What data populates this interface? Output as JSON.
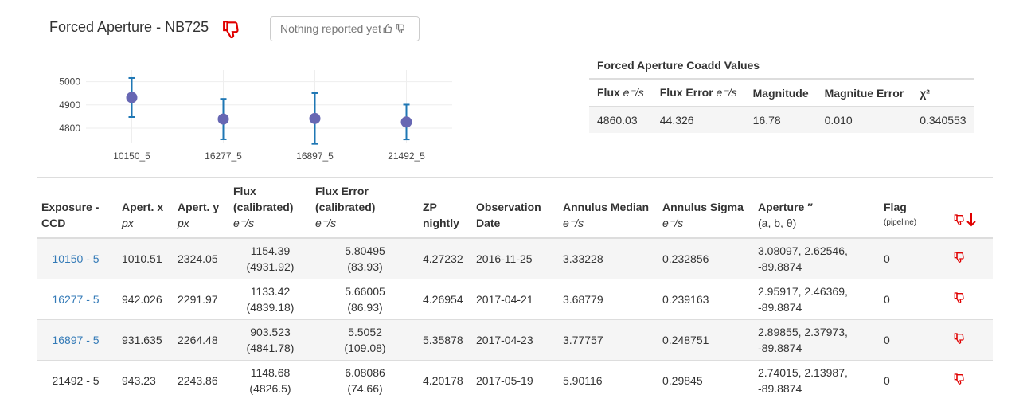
{
  "header": {
    "title": "Forced Aperture - NB725",
    "report_label": "Nothing reported yet"
  },
  "chart_data": {
    "type": "scatter",
    "categories": [
      "10150_5",
      "16277_5",
      "16897_5",
      "21492_5"
    ],
    "values": [
      4931.92,
      4839.18,
      4841.78,
      4826.5
    ],
    "errors": [
      83.93,
      86.93,
      109.08,
      74.66
    ],
    "yticks": [
      4800,
      4900,
      5000
    ],
    "ylim": [
      4735,
      5050
    ],
    "point_color": "#6767b3",
    "error_color": "#1f77b4",
    "grid": true
  },
  "coadd": {
    "title": "Forced Aperture Coadd Values",
    "headers": [
      {
        "label": "Flux",
        "unit": "e⁻/s"
      },
      {
        "label": "Flux Error",
        "unit": "e⁻/s"
      },
      {
        "label": "Magnitude",
        "unit": ""
      },
      {
        "label": "Magnitue Error",
        "unit": ""
      },
      {
        "label": "χ²",
        "unit": ""
      }
    ],
    "values": [
      "4860.03",
      "44.326",
      "16.78",
      "0.010",
      "0.340553"
    ]
  },
  "table": {
    "headers": {
      "exposure": [
        "Exposure -",
        "CCD"
      ],
      "apert_x": "Apert. x",
      "apert_x_unit": "px",
      "apert_y": "Apert. y",
      "apert_y_unit": "px",
      "flux": [
        "Flux",
        "(calibrated)"
      ],
      "flux_unit": "e⁻/s",
      "flux_error": [
        "Flux Error",
        "(calibrated)"
      ],
      "flux_error_unit": "e⁻/s",
      "zp": [
        "ZP",
        "nightly"
      ],
      "obs_date": [
        "Observation",
        "Date"
      ],
      "annulus_median": "Annulus Median",
      "annulus_median_unit": "e⁻/s",
      "annulus_sigma": "Annulus Sigma",
      "annulus_sigma_unit": "e⁻/s",
      "aperture": "Aperture ″",
      "aperture_sub": "(a, b, θ)",
      "flag": "Flag",
      "flag_sub": "(pipeline)"
    },
    "rows": [
      {
        "exposure": "10150 - 5",
        "link": true,
        "apert_x": "1010.51",
        "apert_y": "2324.05",
        "flux": "1154.39",
        "flux_paren": "(4931.92)",
        "flux_error": "5.80495",
        "flux_error_paren": "(83.93)",
        "zp": "4.27232",
        "date": "2016-11-25",
        "ann_median": "3.33228",
        "ann_sigma": "0.232856",
        "aperture1": "3.08097, 2.62546,",
        "aperture2": "-89.8874",
        "flag": "0"
      },
      {
        "exposure": "16277 - 5",
        "link": true,
        "apert_x": "942.026",
        "apert_y": "2291.97",
        "flux": "1133.42",
        "flux_paren": "(4839.18)",
        "flux_error": "5.66005",
        "flux_error_paren": "(86.93)",
        "zp": "4.26954",
        "date": "2017-04-21",
        "ann_median": "3.68779",
        "ann_sigma": "0.239163",
        "aperture1": "2.95917, 2.46369,",
        "aperture2": "-89.8874",
        "flag": "0"
      },
      {
        "exposure": "16897 - 5",
        "link": true,
        "apert_x": "931.635",
        "apert_y": "2264.48",
        "flux": "903.523",
        "flux_paren": "(4841.78)",
        "flux_error": "5.5052",
        "flux_error_paren": "(109.08)",
        "zp": "5.35878",
        "date": "2017-04-23",
        "ann_median": "3.77757",
        "ann_sigma": "0.248751",
        "aperture1": "2.89855, 2.37973,",
        "aperture2": "-89.8874",
        "flag": "0"
      },
      {
        "exposure": "21492 - 5",
        "link": false,
        "apert_x": "943.23",
        "apert_y": "2243.86",
        "flux": "1148.68",
        "flux_paren": "(4826.5)",
        "flux_error": "6.08086",
        "flux_error_paren": "(74.66)",
        "zp": "4.20178",
        "date": "2017-05-19",
        "ann_median": "5.90116",
        "ann_sigma": "0.29845",
        "aperture1": "2.74015, 2.13987,",
        "aperture2": "-89.8874",
        "flag": "0"
      }
    ]
  },
  "colors": {
    "thumb_down_red": "#e00000",
    "link_blue": "#337ab7"
  }
}
